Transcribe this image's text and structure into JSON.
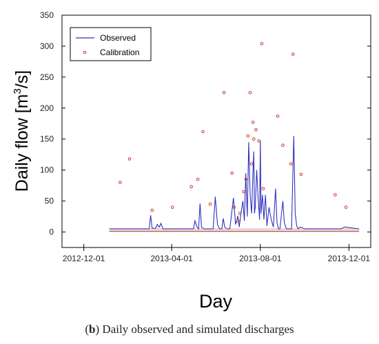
{
  "caption": {
    "label": "b",
    "text": ") Daily observed and simulated discharges",
    "open": "("
  },
  "chart_data": {
    "type": "line",
    "xlabel": "Day",
    "ylabel": "Daily flow [m",
    "ylabel_sup": "3",
    "ylabel_end": "/s]",
    "ylim": [
      -25,
      350
    ],
    "yticks": [
      0,
      50,
      100,
      150,
      200,
      250,
      300,
      350
    ],
    "xlim": [
      "2012-11-01",
      "2013-12-31"
    ],
    "xticks": [
      "2012-12-01",
      "2013-04-01",
      "2013-08-01",
      "2013-12-01"
    ],
    "grid": false,
    "legend_position": "top-left",
    "colors": {
      "observed": "#3030c0",
      "calibration": "#c0392b"
    },
    "series": [
      {
        "name": "Observed",
        "style": "line",
        "x": [
          "2013-01-05",
          "2013-02-20",
          "2013-03-01",
          "2013-03-03",
          "2013-03-05",
          "2013-03-10",
          "2013-03-12",
          "2013-03-15",
          "2013-03-17",
          "2013-03-20",
          "2013-03-25",
          "2013-04-01",
          "2013-04-03",
          "2013-04-06",
          "2013-04-15",
          "2013-04-25",
          "2013-05-01",
          "2013-05-03",
          "2013-05-06",
          "2013-05-08",
          "2013-05-10",
          "2013-05-12",
          "2013-05-15",
          "2013-05-20",
          "2013-05-28",
          "2013-05-31",
          "2013-06-03",
          "2013-06-06",
          "2013-06-09",
          "2013-06-11",
          "2013-06-13",
          "2013-06-16",
          "2013-06-20",
          "2013-06-25",
          "2013-06-28",
          "2013-07-01",
          "2013-07-03",
          "2013-07-05",
          "2013-07-08",
          "2013-07-10",
          "2013-07-12",
          "2013-07-14",
          "2013-07-15",
          "2013-07-16",
          "2013-07-18",
          "2013-07-20",
          "2013-07-22",
          "2013-07-23",
          "2013-07-24",
          "2013-07-25",
          "2013-07-27",
          "2013-07-29",
          "2013-07-31",
          "2013-08-01",
          "2013-08-02",
          "2013-08-04",
          "2013-08-06",
          "2013-08-08",
          "2013-08-10",
          "2013-08-13",
          "2013-08-16",
          "2013-08-19",
          "2013-08-22",
          "2013-08-24",
          "2013-08-26",
          "2013-08-28",
          "2013-09-01",
          "2013-09-03",
          "2013-09-06",
          "2013-09-08",
          "2013-09-10",
          "2013-09-13",
          "2013-09-16",
          "2013-09-18",
          "2013-09-20",
          "2013-09-22",
          "2013-09-25",
          "2013-10-01",
          "2013-10-05",
          "2013-10-10",
          "2013-10-20",
          "2013-11-01",
          "2013-11-20",
          "2013-11-25",
          "2013-12-15"
        ],
        "values": [
          5,
          5,
          5,
          27,
          6,
          6,
          12,
          8,
          14,
          5,
          5,
          5,
          5,
          5,
          5,
          5,
          5,
          18,
          8,
          5,
          46,
          8,
          5,
          5,
          5,
          57,
          12,
          5,
          5,
          22,
          8,
          5,
          5,
          55,
          12,
          26,
          8,
          27,
          50,
          18,
          95,
          25,
          85,
          145,
          60,
          30,
          100,
          130,
          30,
          40,
          100,
          55,
          20,
          147,
          30,
          60,
          20,
          60,
          10,
          40,
          20,
          8,
          70,
          15,
          5,
          5,
          50,
          15,
          5,
          5,
          5,
          5,
          155,
          30,
          10,
          5,
          8,
          5,
          5,
          5,
          5,
          5,
          5,
          8,
          5
        ]
      },
      {
        "name": "Calibration",
        "style": "scatter",
        "x": [
          "2013-01-20",
          "2013-02-02",
          "2013-03-05",
          "2013-04-02",
          "2013-04-28",
          "2013-05-07",
          "2013-05-14",
          "2013-05-24",
          "2013-06-12",
          "2013-06-23",
          "2013-06-26",
          "2013-07-01",
          "2013-07-04",
          "2013-07-09",
          "2013-07-12",
          "2013-07-15",
          "2013-07-18",
          "2013-07-20",
          "2013-07-22",
          "2013-07-23",
          "2013-07-26",
          "2013-07-30",
          "2013-08-03",
          "2013-08-05",
          "2013-08-25",
          "2013-09-01",
          "2013-09-12",
          "2013-09-15",
          "2013-09-26",
          "2013-11-12",
          "2013-11-27"
        ],
        "values": [
          80,
          118,
          35,
          40,
          73,
          85,
          162,
          45,
          225,
          95,
          40,
          18,
          30,
          65,
          85,
          155,
          225,
          110,
          177,
          150,
          165,
          147,
          304,
          70,
          187,
          140,
          110,
          287,
          93,
          60,
          40
        ]
      }
    ]
  }
}
